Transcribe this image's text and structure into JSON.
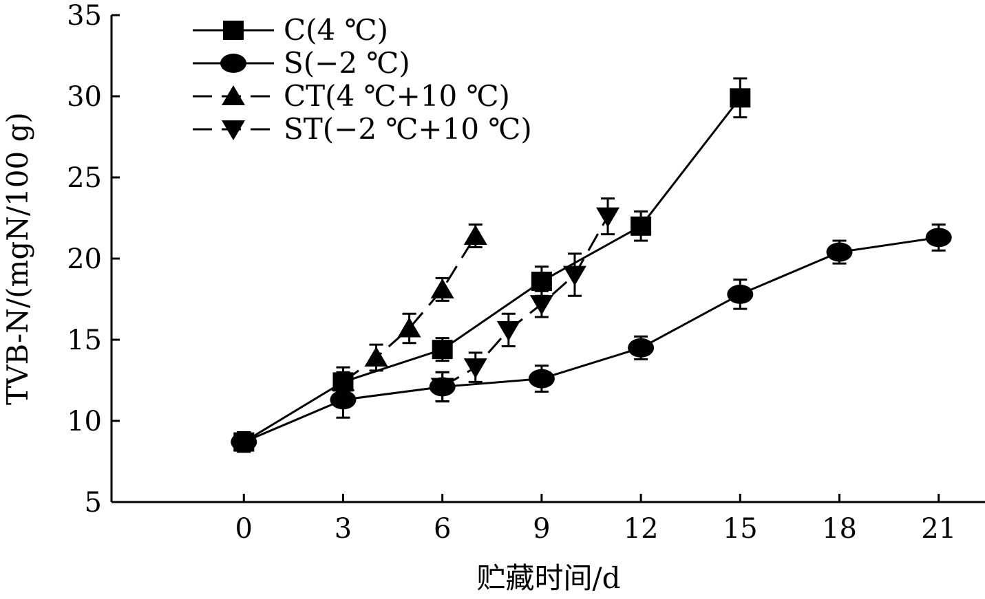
{
  "chart_data": {
    "type": "line",
    "title": "",
    "xlabel": "贮藏时间/d",
    "ylabel": "TVB-N/(mgN/100 g)",
    "xlim": [
      -4,
      22.4
    ],
    "ylim": [
      5,
      35
    ],
    "xticks": [
      0,
      3,
      6,
      9,
      12,
      15,
      18,
      21
    ],
    "yticks": [
      5,
      10,
      15,
      20,
      25,
      30,
      35
    ],
    "legend_position": "top-left",
    "series": [
      {
        "name": "C(4 ℃)",
        "marker": "square",
        "line_style": "solid",
        "x": [
          0,
          3,
          6,
          9,
          12,
          15
        ],
        "values": [
          8.7,
          12.4,
          14.4,
          18.6,
          22.0,
          29.9
        ],
        "errors": [
          0.6,
          0.9,
          0.7,
          0.9,
          0.9,
          1.2
        ]
      },
      {
        "name": "S(−2 ℃)",
        "marker": "circle",
        "line_style": "solid",
        "x": [
          0,
          3,
          6,
          9,
          12,
          15,
          18,
          21
        ],
        "values": [
          8.7,
          11.3,
          12.1,
          12.6,
          14.5,
          17.8,
          20.4,
          21.3
        ],
        "errors": [
          0.6,
          1.1,
          0.9,
          0.8,
          0.7,
          0.9,
          0.7,
          0.8
        ]
      },
      {
        "name": "CT(4 ℃+10 ℃)",
        "marker": "triangle-up",
        "line_style": "dashed",
        "x": [
          3,
          4,
          5,
          6,
          7
        ],
        "values": [
          12.4,
          13.9,
          15.7,
          18.1,
          21.4
        ],
        "errors": [
          0.6,
          0.8,
          0.9,
          0.7,
          0.7
        ]
      },
      {
        "name": "ST(−2 ℃+10 ℃)",
        "marker": "triangle-down",
        "line_style": "dashed",
        "x": [
          6,
          7,
          8,
          9,
          10,
          11
        ],
        "values": [
          12.1,
          13.3,
          15.6,
          17.2,
          19.0,
          22.6
        ],
        "errors": [
          0.9,
          0.9,
          1.0,
          0.8,
          1.3,
          1.1
        ]
      }
    ]
  }
}
